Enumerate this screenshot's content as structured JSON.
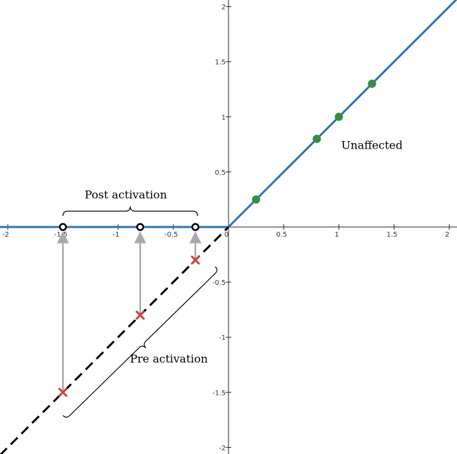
{
  "chart_data": {
    "type": "line",
    "xlim": [
      -2.07,
      2.07
    ],
    "ylim": [
      -2.06,
      2.06
    ],
    "grid": false,
    "x_ticks": [
      -2,
      -1.5,
      -1,
      -0.5,
      0,
      0.5,
      1,
      1.5,
      2
    ],
    "y_ticks": [
      -2,
      -1.5,
      -1,
      -0.5,
      0.5,
      1,
      1.5,
      2
    ],
    "x_tick_labels": [
      "-2",
      "-1.5",
      "-1",
      "-0.5",
      "0",
      "0.5",
      "1",
      "1.5",
      "2"
    ],
    "y_tick_labels": [
      "-2",
      "-1.5",
      "-1",
      "-0.5",
      "0.5",
      "1",
      "1.5",
      "2"
    ],
    "series": [
      {
        "kind": "line",
        "style": "solid",
        "color": "#2d70b3",
        "x": [
          -2.07,
          0,
          2.07
        ],
        "y": [
          0,
          0,
          2.07
        ]
      },
      {
        "kind": "line",
        "style": "dashed",
        "color": "#000000",
        "x": [
          -2.07,
          0
        ],
        "y": [
          -2.07,
          0
        ]
      },
      {
        "kind": "points",
        "marker": "circle",
        "color": "#388c46",
        "x": [
          0.25,
          0.8,
          1.0,
          1.3
        ],
        "y": [
          0.25,
          0.8,
          1.0,
          1.3
        ]
      },
      {
        "kind": "points",
        "marker": "x",
        "color": "#c74440",
        "x": [
          -1.5,
          -0.8,
          -0.3
        ],
        "y": [
          -1.5,
          -0.8,
          -0.3
        ]
      },
      {
        "kind": "points",
        "marker": "open-circle",
        "color": "#000000",
        "x": [
          -1.5,
          -0.8,
          -0.3
        ],
        "y": [
          0,
          0,
          0
        ]
      }
    ],
    "arrows": [
      {
        "from": [
          -1.5,
          -1.5
        ],
        "to": [
          -1.5,
          0
        ],
        "color": "#aaaaaa"
      },
      {
        "from": [
          -0.8,
          -0.8
        ],
        "to": [
          -0.8,
          0
        ],
        "color": "#aaaaaa"
      },
      {
        "from": [
          -0.3,
          -0.3
        ],
        "to": [
          -0.3,
          0
        ],
        "color": "#aaaaaa"
      }
    ],
    "annotations": [
      {
        "text": "Post activation",
        "x": -0.93,
        "y": 0.26
      },
      {
        "text": "Pre activation",
        "x": -0.54,
        "y": -1.23
      },
      {
        "text": "Unaffected",
        "x": 1.3,
        "y": 0.71
      }
    ],
    "braces": [
      {
        "from": [
          -1.5,
          0.1
        ],
        "to": [
          -0.28,
          0.1
        ],
        "direction": "up"
      },
      {
        "from": [
          -1.5,
          -1.71
        ],
        "to": [
          -0.12,
          -0.36
        ],
        "direction": "right"
      }
    ]
  }
}
